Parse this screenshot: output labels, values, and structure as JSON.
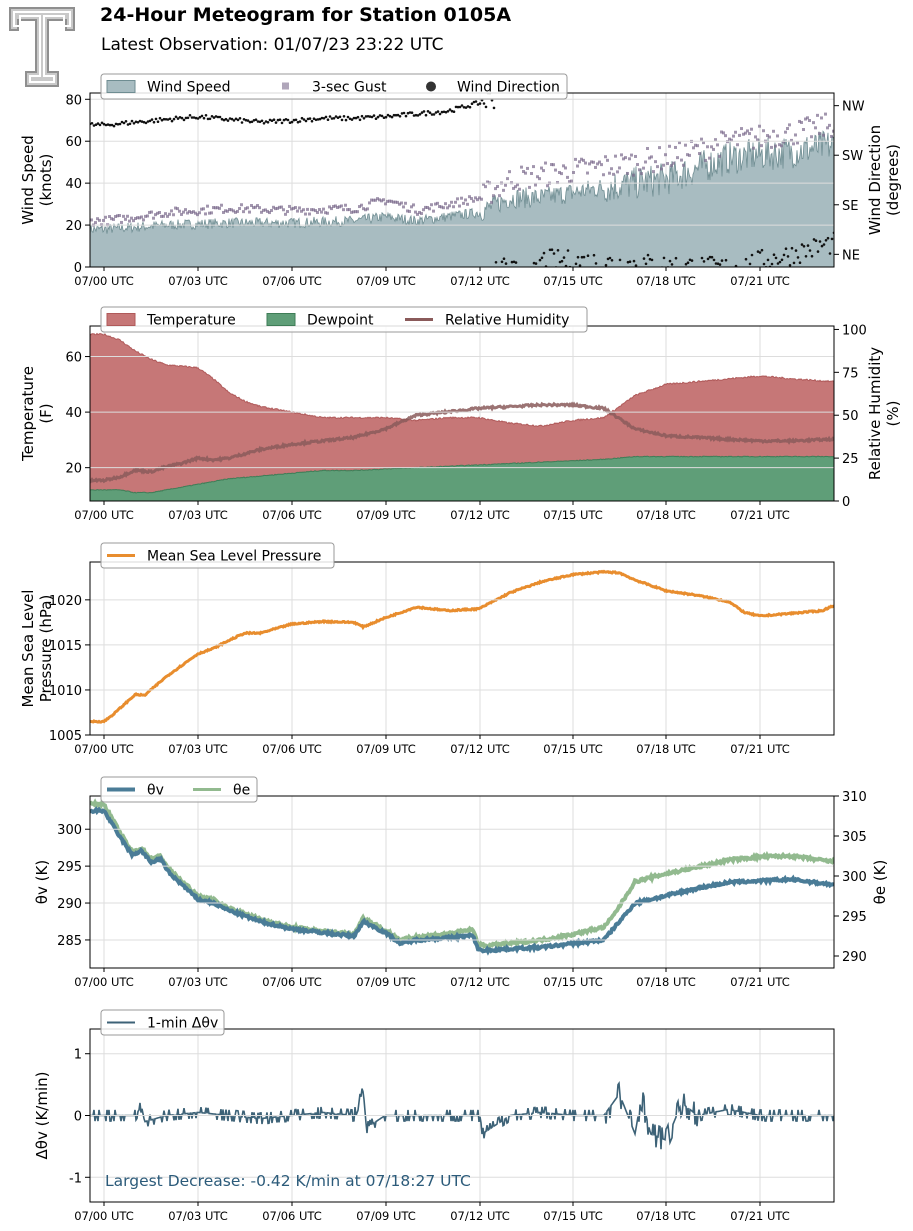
{
  "header": {
    "title": "24-Hour Meteogram for Station 0105A",
    "subtitle": "Latest Observation: 01/07/23 23:22 UTC"
  },
  "colors": {
    "wind_fill": "#a8bcc1",
    "wind_line": "#6f8d92",
    "gust": "#7b6a8c",
    "direction": "#111111",
    "temp": "#c67777",
    "dew": "#5f9e78",
    "rh": "#8a5a5a",
    "pressure": "#e88d2e",
    "theta_v": "#4a7c97",
    "theta_e": "#92ba8f",
    "dtheta": "#3d6277",
    "annotation": "#2c5b7a"
  },
  "chart_data": [
    {
      "type": "area",
      "id": "wind",
      "x_tick_labels": [
        "07/00 UTC",
        "07/03 UTC",
        "07/06 UTC",
        "07/09 UTC",
        "07/12 UTC",
        "07/15 UTC",
        "07/18 UTC",
        "07/21 UTC"
      ],
      "ylabel": "Wind Speed\n(knots)",
      "ylim": [
        0,
        83
      ],
      "yticks": [
        0,
        20,
        40,
        60,
        80
      ],
      "y2label": "Wind Direction\n(degrees)",
      "y2_tick_labels": [
        "NE",
        "SE",
        "SW",
        "NW"
      ],
      "y2_tick_values": [
        45,
        135,
        225,
        315
      ],
      "grid": true,
      "legend": {
        "position": "top-left",
        "entries": [
          "Wind Speed",
          "3-sec Gust",
          "Wind Direction"
        ]
      },
      "series": [
        {
          "name": "Wind Speed",
          "x": [
            0,
            2,
            4,
            6,
            8,
            9,
            10,
            12,
            13,
            14,
            16,
            18,
            20,
            22,
            23.3
          ],
          "values": [
            18,
            20,
            21,
            21,
            22,
            24,
            22,
            26,
            33,
            33,
            38,
            42,
            52,
            55,
            58
          ]
        },
        {
          "name": "3-sec Gust",
          "x": [
            0,
            2,
            4,
            6,
            8,
            9,
            10,
            12,
            13,
            14,
            16,
            18,
            20,
            22,
            23.3
          ],
          "values": [
            22,
            26,
            28,
            27,
            28,
            32,
            27,
            33,
            42,
            44,
            48,
            52,
            60,
            64,
            68
          ]
        },
        {
          "name": "Wind Direction",
          "x": [
            0,
            1,
            2,
            3,
            4,
            5,
            6,
            7,
            8,
            9,
            10,
            11,
            12,
            13,
            14,
            16,
            18,
            20,
            22,
            23.3
          ],
          "values": [
            280,
            285,
            290,
            295,
            290,
            285,
            288,
            292,
            292,
            295,
            300,
            305,
            320,
            340,
            35,
            30,
            25,
            20,
            45,
            65
          ]
        }
      ]
    },
    {
      "type": "area",
      "id": "thermo",
      "x_tick_labels": [
        "07/00 UTC",
        "07/03 UTC",
        "07/06 UTC",
        "07/09 UTC",
        "07/12 UTC",
        "07/15 UTC",
        "07/18 UTC",
        "07/21 UTC"
      ],
      "ylabel": "Temperature\n(F)",
      "ylim": [
        8,
        71
      ],
      "yticks": [
        20,
        40,
        60
      ],
      "y2label": "Relative Humidity\n(%)",
      "y2lim": [
        0,
        102
      ],
      "y2ticks": [
        0,
        25,
        50,
        75,
        100
      ],
      "grid": true,
      "legend": {
        "position": "top-left",
        "entries": [
          "Temperature",
          "Dewpoint",
          "Relative Humidity"
        ]
      },
      "series": [
        {
          "name": "Temperature",
          "x": [
            0,
            0.5,
            1,
            1.5,
            2,
            3,
            3.5,
            4,
            4.5,
            5,
            6,
            7,
            8,
            9,
            10,
            11,
            12,
            13,
            14,
            15,
            16,
            16.5,
            17,
            18,
            19,
            20,
            21,
            22,
            23.3
          ],
          "values": [
            68,
            66,
            62,
            59,
            57,
            56,
            52,
            47,
            44,
            42,
            40,
            38,
            38,
            38,
            37,
            38,
            38,
            36,
            35,
            37,
            38,
            42,
            46,
            50,
            51,
            52,
            53,
            52,
            51
          ]
        },
        {
          "name": "Dewpoint",
          "x": [
            0,
            0.5,
            1,
            1.5,
            2,
            3,
            4,
            5,
            6,
            7,
            8,
            10,
            12,
            14,
            16,
            17,
            18,
            20,
            22,
            23.3
          ],
          "values": [
            12,
            12,
            11,
            11,
            12,
            14,
            16,
            17,
            18,
            19,
            19,
            20,
            21,
            22,
            23,
            24,
            24,
            24,
            24,
            24
          ]
        },
        {
          "name": "Relative Humidity",
          "x": [
            0,
            0.5,
            1,
            1.5,
            2,
            2.5,
            3,
            3.5,
            4,
            5,
            6,
            7,
            8,
            9,
            10,
            11,
            12,
            13,
            14,
            15,
            16,
            16.5,
            17,
            17.5,
            18,
            19,
            20,
            21,
            22,
            23.3
          ],
          "values": [
            12,
            14,
            18,
            17,
            20,
            22,
            25,
            24,
            25,
            30,
            33,
            35,
            37,
            42,
            50,
            52,
            54,
            55,
            56,
            56,
            54,
            48,
            42,
            40,
            38,
            37,
            36,
            35,
            35,
            36
          ]
        }
      ]
    },
    {
      "type": "line",
      "id": "pressure",
      "x_tick_labels": [
        "07/00 UTC",
        "07/03 UTC",
        "07/06 UTC",
        "07/09 UTC",
        "07/12 UTC",
        "07/15 UTC",
        "07/18 UTC",
        "07/21 UTC"
      ],
      "ylabel": "Mean Sea Level\nPressure (hPa)",
      "ylim": [
        1005,
        1024.2
      ],
      "yticks": [
        1005,
        1010,
        1015,
        1020
      ],
      "grid": true,
      "legend": {
        "position": "top-left",
        "entries": [
          "Mean Sea Level Pressure"
        ]
      },
      "series": [
        {
          "name": "Mean Sea Level Pressure",
          "x": [
            0,
            0.3,
            1,
            1.3,
            1.5,
            2,
            3,
            3.5,
            4,
            4.5,
            5,
            6,
            7,
            8,
            8.3,
            9,
            10,
            11,
            12,
            13,
            14,
            15,
            16,
            16.5,
            17,
            18,
            19,
            20,
            20.5,
            21,
            22,
            23,
            23.3
          ],
          "values": [
            1006.5,
            1007.3,
            1009.5,
            1009.4,
            1010.0,
            1011.5,
            1014.0,
            1014.6,
            1015.5,
            1016.3,
            1016.3,
            1017.3,
            1017.6,
            1017.5,
            1017.0,
            1018.0,
            1019.2,
            1018.8,
            1019.0,
            1020.8,
            1022.0,
            1022.8,
            1023.1,
            1023.0,
            1022.2,
            1021.0,
            1020.5,
            1019.8,
            1018.6,
            1018.2,
            1018.5,
            1018.8,
            1019.3
          ]
        }
      ]
    },
    {
      "type": "line",
      "id": "theta",
      "x_tick_labels": [
        "07/00 UTC",
        "07/03 UTC",
        "07/06 UTC",
        "07/09 UTC",
        "07/12 UTC",
        "07/15 UTC",
        "07/18 UTC",
        "07/21 UTC"
      ],
      "ylabel": "θv (K)",
      "ylim": [
        281.2,
        304.5
      ],
      "yticks": [
        285,
        290,
        295,
        300
      ],
      "y2label": "θe (K)",
      "y2lim": [
        288.5,
        310
      ],
      "y2ticks": [
        290,
        295,
        300,
        305,
        310
      ],
      "grid": true,
      "legend": {
        "position": "top-left",
        "entries": [
          "θv",
          "θe"
        ]
      },
      "series": [
        {
          "name": "θv",
          "x": [
            0,
            0.5,
            0.9,
            1.2,
            1.5,
            1.8,
            2.1,
            2.5,
            3,
            3.5,
            4,
            5,
            6,
            7,
            8,
            8.3,
            9,
            9.5,
            10,
            11,
            11.8,
            12,
            12.3,
            13,
            14,
            15,
            16,
            16.3,
            17,
            18,
            19,
            20,
            21,
            22,
            23.3
          ],
          "values": [
            302.5,
            299,
            296.5,
            297.1,
            295.5,
            296.0,
            294.0,
            292.5,
            290.5,
            290.0,
            289.0,
            287.5,
            286.5,
            286.0,
            285.5,
            287.5,
            286.0,
            284.5,
            285.0,
            285.3,
            285.6,
            283.6,
            283.6,
            283.8,
            284.0,
            284.5,
            285.0,
            286.5,
            290.0,
            291.0,
            292.0,
            292.8,
            293.0,
            293.2,
            292.5
          ]
        },
        {
          "name": "θe",
          "x": [
            0,
            0.5,
            0.9,
            1.2,
            1.5,
            1.8,
            2.1,
            2.5,
            3,
            3.5,
            4,
            5,
            6,
            7,
            8,
            8.3,
            9,
            9.5,
            10,
            11,
            11.8,
            12,
            12.3,
            13,
            14,
            15,
            16,
            16.3,
            17,
            18,
            19,
            20,
            21,
            22,
            23.3
          ],
          "values": [
            309,
            305.5,
            303,
            303.5,
            302.2,
            302.5,
            300.8,
            299.3,
            297.5,
            297.0,
            296.0,
            294.6,
            293.6,
            293.1,
            292.7,
            294.8,
            293.2,
            292.0,
            292.4,
            292.8,
            293.3,
            291.4,
            291.3,
            291.6,
            292.0,
            292.7,
            293.6,
            295.0,
            299.3,
            300.3,
            301.1,
            302.0,
            302.4,
            302.5,
            301.8
          ]
        }
      ]
    },
    {
      "type": "line",
      "id": "dtheta",
      "x_tick_labels": [
        "07/00 UTC",
        "07/03 UTC",
        "07/06 UTC",
        "07/09 UTC",
        "07/12 UTC",
        "07/15 UTC",
        "07/18 UTC",
        "07/21 UTC"
      ],
      "ylabel": "Δθv (K/min)",
      "ylim": [
        -1.4,
        1.4
      ],
      "yticks": [
        -1,
        0,
        1
      ],
      "grid": true,
      "legend": {
        "position": "top-left",
        "entries": [
          "1-min Δθv"
        ]
      },
      "series": [
        {
          "name": "1-min Δθv",
          "x": [
            0,
            1,
            1.2,
            1.3,
            2,
            3,
            4,
            5,
            6,
            7,
            8,
            8.3,
            8.4,
            9,
            10,
            12,
            12.1,
            13,
            14,
            15,
            16,
            16.5,
            17,
            17.2,
            17.5,
            18,
            18.5,
            19,
            20,
            21,
            22,
            23.3
          ],
          "values": [
            0,
            0,
            0.15,
            -0.1,
            0,
            0.05,
            0,
            -0.05,
            0,
            0.05,
            0,
            0.4,
            -0.2,
            0,
            0,
            0,
            -0.3,
            0,
            0.05,
            0,
            0,
            0.35,
            -0.3,
            0.3,
            -0.3,
            -0.4,
            0.2,
            0,
            0.1,
            0,
            0,
            0
          ]
        }
      ],
      "annotation": "Largest Decrease: -0.42 K/min at 07/18:27 UTC"
    }
  ]
}
